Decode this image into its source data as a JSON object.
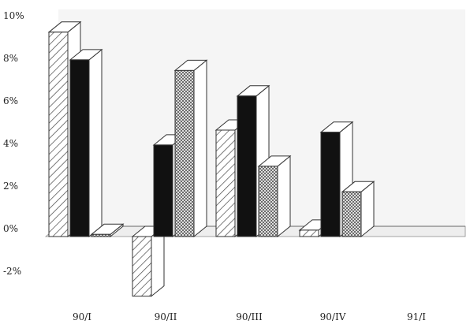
{
  "chart_data": {
    "type": "bar",
    "style": "3d",
    "categories": [
      "90/I",
      "90/II",
      "90/III",
      "90/IV",
      "91/I"
    ],
    "series": [
      {
        "pattern": "diagonal-hatch",
        "values": [
          9.6,
          -2.8,
          5.0,
          0.3,
          null
        ]
      },
      {
        "pattern": "solid",
        "values": [
          8.3,
          4.3,
          6.6,
          4.9,
          null
        ]
      },
      {
        "pattern": "crosshatch",
        "values": [
          0.1,
          7.8,
          3.3,
          2.1,
          null
        ]
      }
    ],
    "ylim": [
      -3,
      10
    ],
    "yticks": [
      {
        "value": 10,
        "label": "10%"
      },
      {
        "value": 8,
        "label": "8%"
      },
      {
        "value": 6,
        "label": "6%"
      },
      {
        "value": 4,
        "label": "4%"
      },
      {
        "value": 2,
        "label": "2%"
      },
      {
        "value": 0,
        "label": "0%"
      },
      {
        "value": -2,
        "label": "-2%"
      }
    ],
    "grid": false,
    "legend": "none",
    "colors": {
      "solid": "#111111",
      "outline": "#333333",
      "wall": "#f5f5f5",
      "floor": "#eeeeee",
      "pattern_ink": "#444444"
    }
  }
}
